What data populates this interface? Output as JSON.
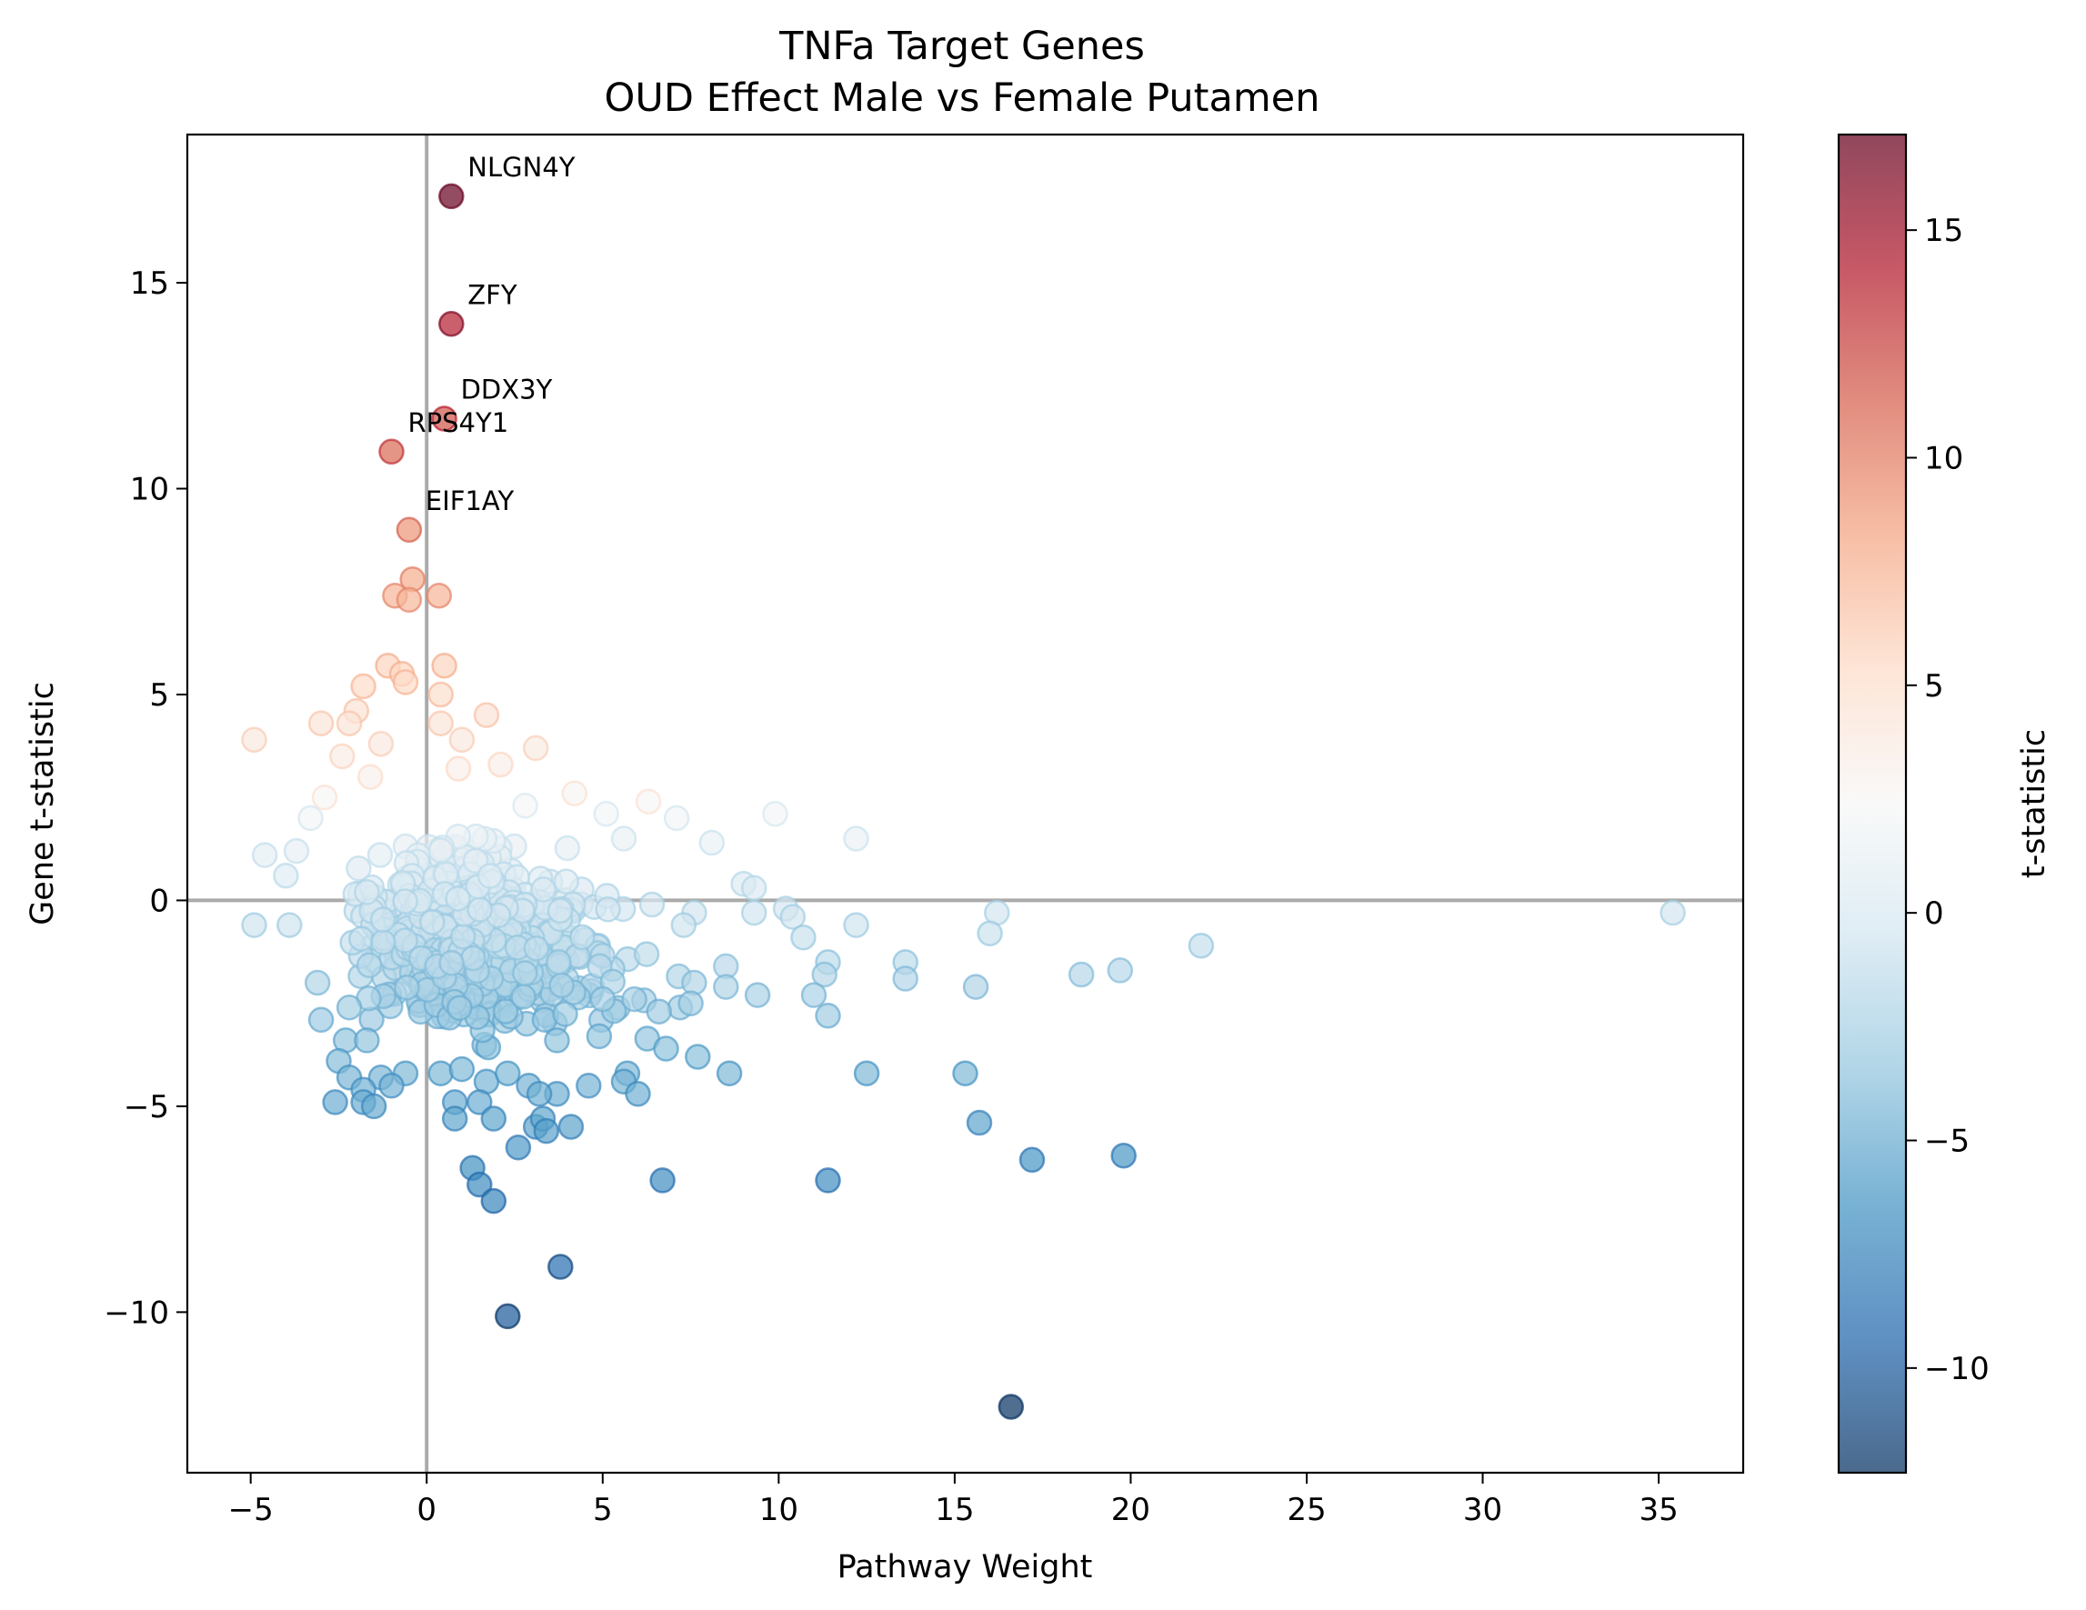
{
  "chart_data": {
    "type": "scatter",
    "title": "TNFa Target Genes",
    "subtitle": "OUD Effect Male vs Female Putamen",
    "xlabel": "Pathway Weight",
    "ylabel": "Gene t-statistic",
    "xlim": [
      -6.8,
      37.4
    ],
    "ylim": [
      -13.9,
      18.6
    ],
    "x_ticks": [
      -5,
      0,
      5,
      10,
      15,
      20,
      25,
      30,
      35
    ],
    "y_ticks": [
      -10,
      -5,
      0,
      5,
      10,
      15
    ],
    "grid": false,
    "reference_lines": {
      "x": 0,
      "y": 0
    },
    "colorbar": {
      "label": "t-statistic",
      "colormap": "RdBu_r",
      "range": [
        -12.3,
        17.1
      ],
      "ticks": [
        -10,
        -5,
        0,
        5,
        10,
        15
      ]
    },
    "annotations": [
      {
        "text": "NLGN4Y",
        "x": 0.7,
        "y": 17.1
      },
      {
        "text": "ZFY",
        "x": 0.7,
        "y": 14.0
      },
      {
        "text": "DDX3Y",
        "x": 0.5,
        "y": 11.7
      },
      {
        "text": "RPS4Y1",
        "x": -1.0,
        "y": 10.9
      },
      {
        "text": "EIF1AY",
        "x": -0.5,
        "y": 9.0
      }
    ],
    "points": [
      {
        "x": 0.7,
        "y": 17.1
      },
      {
        "x": 0.7,
        "y": 14.0
      },
      {
        "x": 0.5,
        "y": 11.7
      },
      {
        "x": -1.0,
        "y": 10.9
      },
      {
        "x": -0.5,
        "y": 9.0
      },
      {
        "x": -0.4,
        "y": 7.8
      },
      {
        "x": -0.9,
        "y": 7.4
      },
      {
        "x": -0.5,
        "y": 7.3
      },
      {
        "x": 0.35,
        "y": 7.4
      },
      {
        "x": -1.1,
        "y": 5.7
      },
      {
        "x": -0.7,
        "y": 5.5
      },
      {
        "x": 0.5,
        "y": 5.7
      },
      {
        "x": -1.8,
        "y": 5.2
      },
      {
        "x": -0.6,
        "y": 5.3
      },
      {
        "x": 0.4,
        "y": 5.0
      },
      {
        "x": -2.0,
        "y": 4.6
      },
      {
        "x": 1.7,
        "y": 4.5
      },
      {
        "x": -4.9,
        "y": 3.9
      },
      {
        "x": -3.0,
        "y": 4.3
      },
      {
        "x": -2.2,
        "y": 4.3
      },
      {
        "x": 0.4,
        "y": 4.3
      },
      {
        "x": 3.1,
        "y": 3.7
      },
      {
        "x": -1.3,
        "y": 3.8
      },
      {
        "x": 1.0,
        "y": 3.9
      },
      {
        "x": -2.4,
        "y": 3.5
      },
      {
        "x": 0.9,
        "y": 3.2
      },
      {
        "x": 2.1,
        "y": 3.3
      },
      {
        "x": -1.6,
        "y": 3.0
      },
      {
        "x": 4.2,
        "y": 2.6
      },
      {
        "x": 6.3,
        "y": 2.4
      },
      {
        "x": 7.1,
        "y": 2.0
      },
      {
        "x": 9.9,
        "y": 2.1
      },
      {
        "x": 5.1,
        "y": 2.1
      },
      {
        "x": -2.9,
        "y": 2.5
      },
      {
        "x": -3.3,
        "y": 2.0
      },
      {
        "x": 2.8,
        "y": 2.3
      },
      {
        "x": 5.6,
        "y": 1.5
      },
      {
        "x": 8.1,
        "y": 1.4
      },
      {
        "x": 12.2,
        "y": 1.5
      },
      {
        "x": -4.6,
        "y": 1.1
      },
      {
        "x": -3.7,
        "y": 1.2
      },
      {
        "x": -4.0,
        "y": 0.6
      },
      {
        "x": 9.0,
        "y": 0.4
      },
      {
        "x": 9.3,
        "y": 0.3
      },
      {
        "x": 6.4,
        "y": -0.1
      },
      {
        "x": 10.2,
        "y": -0.2
      },
      {
        "x": 10.4,
        "y": -0.4
      },
      {
        "x": 9.3,
        "y": -0.3
      },
      {
        "x": 16.2,
        "y": -0.3
      },
      {
        "x": 35.4,
        "y": -0.3
      },
      {
        "x": -4.9,
        "y": -0.6
      },
      {
        "x": -3.9,
        "y": -0.6
      },
      {
        "x": 12.2,
        "y": -0.6
      },
      {
        "x": 16.0,
        "y": -0.8
      },
      {
        "x": 10.7,
        "y": -0.9
      },
      {
        "x": 22.0,
        "y": -1.1
      },
      {
        "x": 7.6,
        "y": -0.3
      },
      {
        "x": 7.3,
        "y": -0.6
      },
      {
        "x": 11.4,
        "y": -1.5
      },
      {
        "x": 13.6,
        "y": -1.5
      },
      {
        "x": 8.5,
        "y": -1.6
      },
      {
        "x": 11.3,
        "y": -1.8
      },
      {
        "x": 13.6,
        "y": -1.9
      },
      {
        "x": 18.6,
        "y": -1.8
      },
      {
        "x": 19.7,
        "y": -1.7
      },
      {
        "x": 7.6,
        "y": -2.0
      },
      {
        "x": 8.5,
        "y": -2.1
      },
      {
        "x": 9.4,
        "y": -2.3
      },
      {
        "x": 11.0,
        "y": -2.3
      },
      {
        "x": 15.6,
        "y": -2.1
      },
      {
        "x": 11.4,
        "y": -2.8
      },
      {
        "x": 7.2,
        "y": -2.6
      },
      {
        "x": 6.6,
        "y": -2.7
      },
      {
        "x": 7.5,
        "y": -2.5
      },
      {
        "x": 5.9,
        "y": -2.4
      },
      {
        "x": 5.0,
        "y": -2.4
      },
      {
        "x": -3.1,
        "y": -2.0
      },
      {
        "x": -3.0,
        "y": -2.9
      },
      {
        "x": -2.2,
        "y": -2.6
      },
      {
        "x": 4.9,
        "y": -3.3
      },
      {
        "x": 6.8,
        "y": -3.6
      },
      {
        "x": 7.7,
        "y": -3.8
      },
      {
        "x": -2.3,
        "y": -3.4
      },
      {
        "x": -1.7,
        "y": -3.4
      },
      {
        "x": 3.7,
        "y": -3.4
      },
      {
        "x": 5.7,
        "y": -4.2
      },
      {
        "x": 5.6,
        "y": -4.4
      },
      {
        "x": 6.0,
        "y": -4.7
      },
      {
        "x": 8.6,
        "y": -4.2
      },
      {
        "x": 12.5,
        "y": -4.2
      },
      {
        "x": 15.3,
        "y": -4.2
      },
      {
        "x": 4.6,
        "y": -4.5
      },
      {
        "x": 3.7,
        "y": -4.7
      },
      {
        "x": -2.5,
        "y": -3.9
      },
      {
        "x": -2.2,
        "y": -4.3
      },
      {
        "x": -1.3,
        "y": -4.3
      },
      {
        "x": -0.6,
        "y": -4.2
      },
      {
        "x": -1.8,
        "y": -4.6
      },
      {
        "x": -1.0,
        "y": -4.5
      },
      {
        "x": -2.6,
        "y": -4.9
      },
      {
        "x": -1.8,
        "y": -4.9
      },
      {
        "x": -1.5,
        "y": -5.0
      },
      {
        "x": 0.4,
        "y": -4.2
      },
      {
        "x": 1.0,
        "y": -4.1
      },
      {
        "x": 1.7,
        "y": -4.4
      },
      {
        "x": 2.3,
        "y": -4.2
      },
      {
        "x": 2.9,
        "y": -4.5
      },
      {
        "x": 3.2,
        "y": -4.7
      },
      {
        "x": 0.8,
        "y": -4.9
      },
      {
        "x": 1.5,
        "y": -4.9
      },
      {
        "x": 0.8,
        "y": -5.3
      },
      {
        "x": 1.9,
        "y": -5.3
      },
      {
        "x": 3.1,
        "y": -5.5
      },
      {
        "x": 3.3,
        "y": -5.3
      },
      {
        "x": 3.4,
        "y": -5.6
      },
      {
        "x": 4.1,
        "y": -5.5
      },
      {
        "x": 15.7,
        "y": -5.4
      },
      {
        "x": 2.6,
        "y": -6.0
      },
      {
        "x": 1.3,
        "y": -6.5
      },
      {
        "x": 1.5,
        "y": -6.9
      },
      {
        "x": 6.7,
        "y": -6.8
      },
      {
        "x": 11.4,
        "y": -6.8
      },
      {
        "x": 17.2,
        "y": -6.3
      },
      {
        "x": 19.8,
        "y": -6.2
      },
      {
        "x": 1.9,
        "y": -7.3
      },
      {
        "x": 3.8,
        "y": -8.9
      },
      {
        "x": 2.3,
        "y": -10.1
      },
      {
        "x": 16.6,
        "y": -12.3
      }
    ]
  }
}
